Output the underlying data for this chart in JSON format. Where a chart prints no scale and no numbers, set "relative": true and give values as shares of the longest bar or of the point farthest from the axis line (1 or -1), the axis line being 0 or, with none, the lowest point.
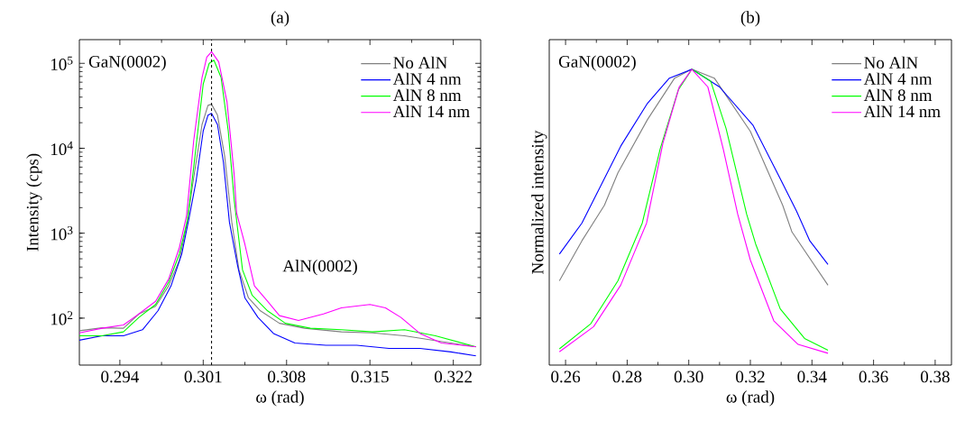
{
  "chart_data": [
    {
      "type": "line",
      "title": "(a)",
      "xlabel": "ω (rad)",
      "ylabel": "Intensity (cps)",
      "log": "y",
      "legend": "top right",
      "xlim": [
        0.2906,
        0.3243
      ],
      "ylim": [
        28,
        190000
      ],
      "xticks": [
        0.294,
        0.301,
        0.308,
        0.315,
        0.322
      ],
      "yticks": [
        {
          "value": 100,
          "label": "10$^{2}$"
        },
        {
          "value": 1000,
          "label": "10$^{3}$"
        },
        {
          "value": 10000,
          "label": "10$^{4}$"
        },
        {
          "value": 100000,
          "label": "10$^{5}$"
        }
      ],
      "annotations": [
        "GaN(0002)",
        "AlN(0002)"
      ],
      "ref_lines": [
        {
          "axis": "x",
          "value": 0.3017,
          "color": "#000000",
          "line_style": "dashed"
        }
      ],
      "series": [
        {
          "name": "No AlN",
          "color": "#808080",
          "x": [
            0.2906,
            0.2925,
            0.2943,
            0.2956,
            0.297,
            0.2981,
            0.299,
            0.2996,
            0.3002,
            0.3009,
            0.3014,
            0.3017,
            0.3022,
            0.3028,
            0.3034,
            0.304,
            0.3048,
            0.3058,
            0.3074,
            0.3095,
            0.3126,
            0.3152,
            0.3179,
            0.3218,
            0.3239
          ],
          "values": [
            71,
            77,
            76,
            112,
            138,
            240,
            480,
            1230,
            4500,
            19000,
            32000,
            33000,
            24500,
            8100,
            1350,
            370,
            173,
            122,
            87,
            76,
            69,
            67,
            62,
            51,
            46
          ]
        },
        {
          "name": "AlN 4 nm",
          "color": "#0000ff",
          "x": [
            0.2906,
            0.2925,
            0.2943,
            0.2959,
            0.2972,
            0.2983,
            0.2992,
            0.2998,
            0.3004,
            0.301,
            0.3014,
            0.3017,
            0.3022,
            0.3027,
            0.3032,
            0.3039,
            0.3045,
            0.3056,
            0.3069,
            0.3087,
            0.3113,
            0.3139,
            0.3166,
            0.3192,
            0.3218,
            0.3239
          ],
          "values": [
            55,
            62,
            62,
            73,
            122,
            240,
            570,
            1480,
            4100,
            16000,
            24500,
            25700,
            19000,
            6800,
            1350,
            405,
            173,
            102,
            66,
            51,
            48,
            48,
            44,
            44,
            40,
            36
          ]
        },
        {
          "name": "AlN 8 nm",
          "color": "#00ff00",
          "x": [
            0.2906,
            0.2925,
            0.2943,
            0.2956,
            0.297,
            0.2981,
            0.299,
            0.2997,
            0.3004,
            0.301,
            0.3015,
            0.3019,
            0.3025,
            0.3031,
            0.3036,
            0.3043,
            0.3051,
            0.3064,
            0.3079,
            0.31,
            0.3126,
            0.3152,
            0.3179,
            0.3205,
            0.3239
          ],
          "values": [
            62,
            62,
            69,
            102,
            145,
            265,
            570,
            1480,
            10500,
            57000,
            100000,
            109000,
            68000,
            16000,
            2450,
            370,
            187,
            122,
            87,
            76,
            73,
            69,
            73,
            62,
            46
          ]
        },
        {
          "name": "AlN 14 nm",
          "color": "#ff00ff",
          "x": [
            0.2906,
            0.2925,
            0.2943,
            0.2954,
            0.297,
            0.2981,
            0.299,
            0.2996,
            0.3002,
            0.3009,
            0.3013,
            0.3017,
            0.3023,
            0.303,
            0.3036,
            0.3038,
            0.3045,
            0.3053,
            0.3064,
            0.3074,
            0.309,
            0.3111,
            0.3126,
            0.315,
            0.3163,
            0.3176,
            0.3192,
            0.321,
            0.3239
          ],
          "values": [
            67,
            76,
            83,
            107,
            158,
            288,
            680,
            1600,
            12300,
            68000,
            118000,
            137000,
            104000,
            35000,
            4900,
            1740,
            740,
            240,
            158,
            107,
            94,
            112,
            132,
            145,
            132,
            102,
            66,
            51,
            46
          ]
        }
      ]
    },
    {
      "type": "line",
      "title": "(b)",
      "xlabel": "ω (rad)",
      "ylabel": "Normalized intensity",
      "relative": true,
      "legend": "top right",
      "xlim": [
        0.2547,
        0.3853
      ],
      "xticks": [
        0.26,
        0.28,
        {
          "value": 0.3,
          "label": "0.30"
        },
        0.32,
        0.34,
        0.36,
        0.38
      ],
      "annotations": [
        "GaN(0002)"
      ],
      "series": [
        {
          "name": "No AlN",
          "color": "#808080",
          "x": [
            0.258,
            0.2653,
            0.2726,
            0.277,
            0.2866,
            0.2954,
            0.301,
            0.3083,
            0.32,
            0.3305,
            0.3335,
            0.3452
          ],
          "values": [
            0.285,
            0.42,
            0.54,
            0.65,
            0.83,
            0.97,
            1,
            0.97,
            0.79,
            0.54,
            0.45,
            0.27
          ]
        },
        {
          "name": "AlN 4 nm",
          "color": "#0000ff",
          "x": [
            0.258,
            0.2653,
            0.2779,
            0.2866,
            0.2937,
            0.301,
            0.31,
            0.3209,
            0.3297,
            0.335,
            0.3393,
            0.3452
          ],
          "values": [
            0.375,
            0.48,
            0.74,
            0.885,
            0.97,
            1,
            0.94,
            0.81,
            0.63,
            0.52,
            0.42,
            0.34
          ]
        },
        {
          "name": "AlN 8 nm",
          "color": "#00ff00",
          "x": [
            0.258,
            0.2682,
            0.277,
            0.2849,
            0.2907,
            0.2966,
            0.301,
            0.3071,
            0.3121,
            0.3188,
            0.3217,
            0.3297,
            0.3376,
            0.3452
          ],
          "values": [
            0.055,
            0.14,
            0.285,
            0.48,
            0.73,
            0.93,
            1,
            0.96,
            0.8,
            0.51,
            0.41,
            0.19,
            0.09,
            0.05
          ]
        },
        {
          "name": "AlN 14 nm",
          "color": "#ff00ff",
          "x": [
            0.258,
            0.2691,
            0.2779,
            0.2863,
            0.2916,
            0.2969,
            0.301,
            0.3062,
            0.3112,
            0.3159,
            0.32,
            0.3276,
            0.3355,
            0.3452
          ],
          "values": [
            0.045,
            0.13,
            0.27,
            0.48,
            0.75,
            0.94,
            1,
            0.94,
            0.73,
            0.51,
            0.355,
            0.15,
            0.07,
            0.04
          ]
        }
      ]
    }
  ]
}
